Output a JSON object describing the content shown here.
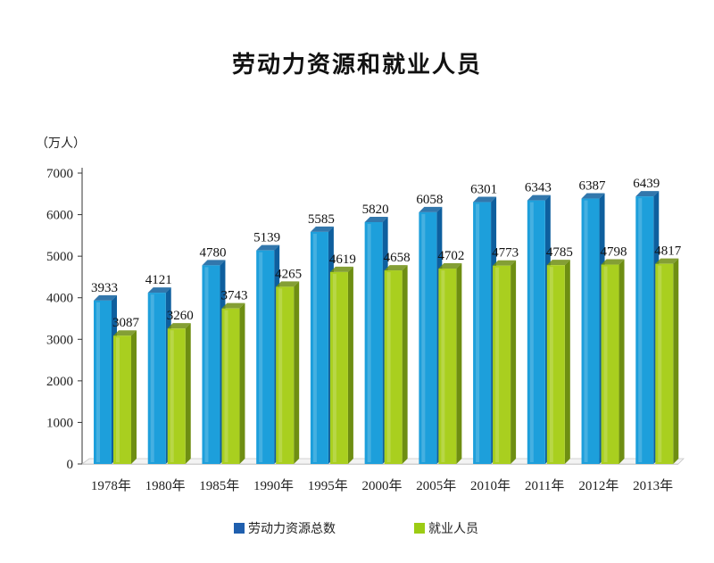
{
  "title": "劳动力资源和就业人员",
  "unit_label": "（万人）",
  "colors": {
    "labor_total": "#1d9fdb",
    "labor_total_side": "#0e5f9e",
    "employed": "#a9cf1f",
    "employed_side": "#6e8e12",
    "legend_labor": "#1f5fae",
    "legend_employed": "#9ccc14"
  },
  "chart_data": {
    "type": "bar",
    "title": "劳动力资源和就业人员",
    "ylabel": "（万人）",
    "xlabel": "",
    "ylim": [
      0,
      7000
    ],
    "yticks": [
      0,
      1000,
      2000,
      3000,
      4000,
      5000,
      6000,
      7000
    ],
    "grid": false,
    "legend_position": "bottom",
    "categories": [
      "1978年",
      "1980年",
      "1985年",
      "1990年",
      "1995年",
      "2000年",
      "2005年",
      "2010年",
      "2011年",
      "2012年",
      "2013年"
    ],
    "series": [
      {
        "name": "劳动力资源总数",
        "values": [
          3933,
          4121,
          4780,
          5139,
          5585,
          5820,
          6058,
          6301,
          6343,
          6387,
          6439
        ]
      },
      {
        "name": "就业人员",
        "values": [
          3087,
          3260,
          3743,
          4265,
          4619,
          4658,
          4702,
          4773,
          4785,
          4798,
          4817
        ]
      }
    ]
  }
}
